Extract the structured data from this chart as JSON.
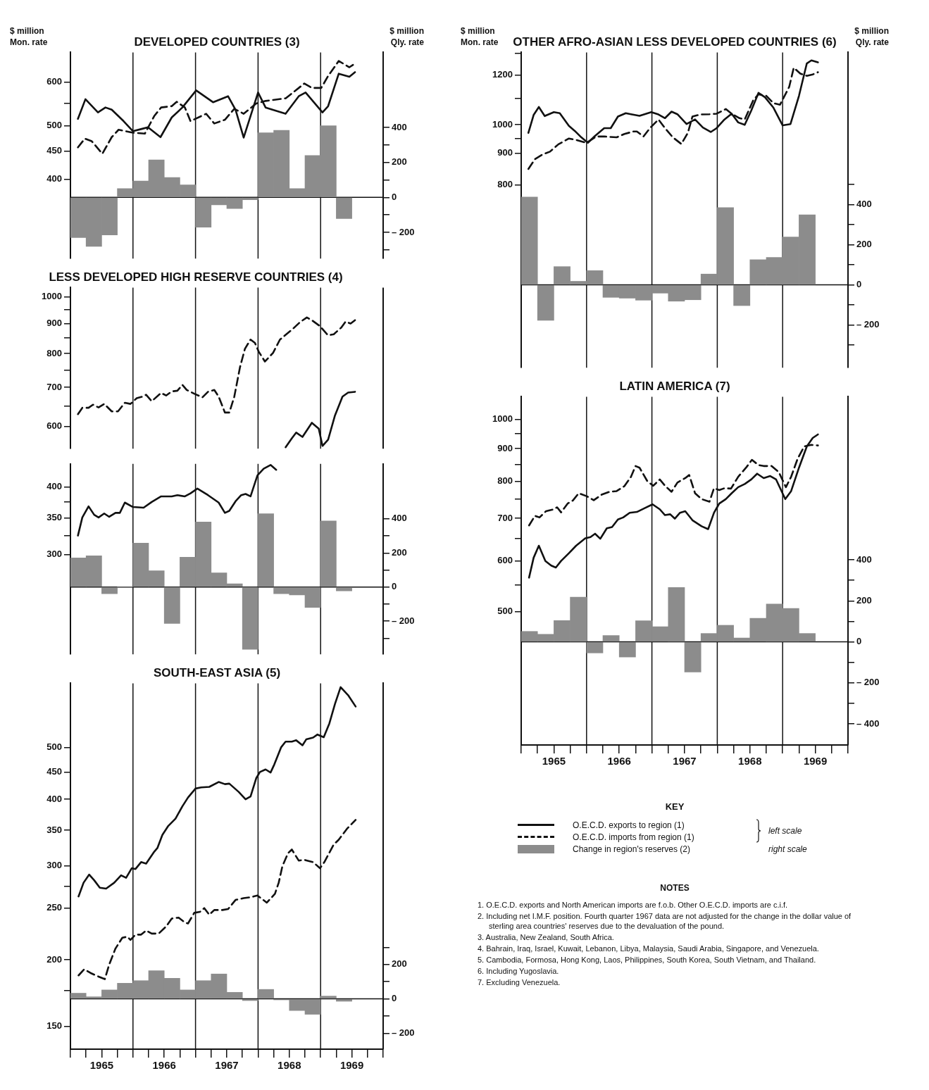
{
  "chart_data": [
    {
      "type": "line",
      "title": "DEVELOPED COUNTRIES (3)",
      "ylabel": "$ million Mon. rate",
      "y2label": "$ million Qly. rate",
      "log": "y",
      "tick_labels": "y",
      "xlim": [
        1965,
        1970
      ],
      "ylim": [
        287,
        680
      ],
      "y2lim": [
        -350,
        829
      ],
      "yticks": [
        400,
        450,
        500,
        {
          "value": 550,
          "label": null
        },
        600
      ],
      "y2ticks": [
        {
          "value": -300,
          "label": null
        },
        {
          "value": -200,
          "label": "– 200"
        },
        {
          "value": -100,
          "label": null
        },
        0,
        {
          "value": 100,
          "label": null
        },
        200,
        {
          "value": 300,
          "label": null
        },
        400
      ],
      "ref_lines": [
        {
          "axis": "x",
          "value": 1966
        },
        {
          "axis": "x",
          "value": 1967
        },
        {
          "axis": "x",
          "value": 1968
        },
        {
          "axis": "x",
          "value": 1969
        },
        {
          "axis": "y2",
          "value": 0
        }
      ],
      "series": [
        {
          "color": "#111111",
          "line_style": "solid",
          "x": [
            1965.12,
            1965.24,
            1965.44,
            1965.56,
            1965.66,
            1965.85,
            1966.0,
            1966.15,
            1966.24,
            1966.44,
            1966.62,
            1966.79,
            1967.01,
            1967.28,
            1967.52,
            1967.64,
            1967.77,
            1968.0,
            1968.12,
            1968.44,
            1968.65,
            1968.76,
            1969.03,
            1969.12,
            1969.29,
            1969.46,
            1969.55
          ],
          "values": [
            515,
            559,
            529,
            540,
            535,
            510,
            489,
            494,
            497,
            477,
            518,
            540,
            580,
            552,
            566,
            535,
            476,
            575,
            540,
            526,
            566,
            575,
            529,
            543,
            622,
            614,
            626
          ]
        },
        {
          "color": "#111111",
          "line_style": "dashed",
          "x": [
            1965.12,
            1965.23,
            1965.34,
            1965.51,
            1965.66,
            1965.77,
            1966.0,
            1966.19,
            1966.34,
            1966.45,
            1966.62,
            1966.7,
            1966.83,
            1966.92,
            1967.17,
            1967.3,
            1967.47,
            1967.62,
            1967.77,
            1967.97,
            1968.12,
            1968.44,
            1968.74,
            1968.86,
            1969.01,
            1969.12,
            1969.29,
            1969.46,
            1969.55
          ],
          "values": [
            457,
            474,
            469,
            445,
            477,
            492,
            486,
            484,
            521,
            540,
            543,
            553,
            540,
            510,
            526,
            505,
            513,
            537,
            526,
            549,
            555,
            561,
            597,
            586,
            586,
            616,
            656,
            639,
            649
          ]
        },
        {
          "type": "bar",
          "axis": "y2",
          "color": "#8c8c8c",
          "x": [
            1965.125,
            1965.375,
            1965.625,
            1965.875,
            1966.125,
            1966.375,
            1966.625,
            1966.875,
            1967.125,
            1967.375,
            1967.625,
            1967.875,
            1968.125,
            1968.375,
            1968.625,
            1968.875,
            1969.125,
            1969.375
          ],
          "values": [
            -230,
            -280,
            -215,
            50,
            93,
            214,
            114,
            71,
            -171,
            -43,
            -64,
            -14,
            369,
            383,
            50,
            239,
            410,
            -121
          ]
        }
      ]
    },
    {
      "type": "line",
      "title": "LESS DEVELOPED HIGH RESERVE COUNTRIES (4)",
      "log": "y",
      "tick_labels": "y",
      "xlim": [
        1965,
        1970
      ],
      "ylim": [
        550,
        1037
      ],
      "yticks": [
        600,
        {
          "value": 650,
          "label": null
        },
        700,
        {
          "value": 750,
          "label": null
        },
        800,
        {
          "value": 850,
          "label": null
        },
        900,
        {
          "value": 950,
          "label": null
        },
        1000
      ],
      "ref_lines": [
        {
          "axis": "x",
          "value": 1966
        },
        {
          "axis": "x",
          "value": 1967
        },
        {
          "axis": "x",
          "value": 1968
        },
        {
          "axis": "x",
          "value": 1969
        }
      ],
      "series": [
        {
          "color": "#111111",
          "line_style": "dashed",
          "x": [
            1965.12,
            1965.19,
            1965.29,
            1965.36,
            1965.45,
            1965.54,
            1965.66,
            1965.76,
            1965.87,
            1965.96,
            1966.06,
            1966.15,
            1966.21,
            1966.3,
            1966.45,
            1966.53,
            1966.62,
            1966.71,
            1966.79,
            1966.86,
            1966.98,
            1967.11,
            1967.2,
            1967.3,
            1967.37,
            1967.47,
            1967.54,
            1967.62,
            1967.71,
            1967.79,
            1967.88,
            1967.95,
            1968.01,
            1968.11,
            1968.24,
            1968.35,
            1968.56,
            1968.67,
            1968.78,
            1968.86,
            1968.99,
            1969.12,
            1969.21,
            1969.33,
            1969.4,
            1969.48,
            1969.55
          ],
          "values": [
            630,
            646,
            646,
            654,
            647,
            656,
            637,
            637,
            659,
            656,
            671,
            675,
            680,
            663,
            685,
            678,
            689,
            691,
            707,
            693,
            683,
            673,
            688,
            693,
            675,
            634,
            634,
            675,
            757,
            815,
            845,
            834,
            806,
            775,
            802,
            845,
            882,
            905,
            922,
            912,
            891,
            859,
            863,
            886,
            907,
            900,
            912
          ]
        },
        {
          "color": "#111111",
          "line_style": "solid",
          "x": [
            1968.44,
            1968.54,
            1968.61,
            1968.71,
            1968.86,
            1968.97,
            1969.03,
            1969.12,
            1969.23,
            1969.35,
            1969.44,
            1969.55
          ],
          "values": [
            553,
            573,
            586,
            576,
            609,
            595,
            556,
            570,
            627,
            675,
            686,
            688
          ]
        }
      ]
    },
    {
      "type": "line",
      "log": "y",
      "tick_labels": "y",
      "xlim": [
        1965,
        1970
      ],
      "ylim": [
        196,
        441
      ],
      "y2lim": [
        -394,
        722
      ],
      "yticks": [
        300,
        {
          "value": 325,
          "label": null
        },
        350,
        {
          "value": 375,
          "label": null
        },
        400
      ],
      "y2ticks": [
        {
          "value": -300,
          "label": null
        },
        {
          "value": -200,
          "label": "– 200"
        },
        {
          "value": -100,
          "label": null
        },
        0,
        {
          "value": 100,
          "label": null
        },
        200,
        {
          "value": 300,
          "label": null
        },
        400
      ],
      "ref_lines": [
        {
          "axis": "x",
          "value": 1966
        },
        {
          "axis": "x",
          "value": 1967
        },
        {
          "axis": "x",
          "value": 1968
        },
        {
          "axis": "x",
          "value": 1969
        },
        {
          "axis": "y2",
          "value": 0
        }
      ],
      "series": [
        {
          "color": "#111111",
          "line_style": "solid",
          "x": [
            1965.12,
            1965.19,
            1965.29,
            1965.38,
            1965.45,
            1965.54,
            1965.62,
            1965.72,
            1965.79,
            1965.87,
            1966.0,
            1966.17,
            1966.3,
            1966.45,
            1966.62,
            1966.71,
            1966.83,
            1966.92,
            1967.03,
            1967.2,
            1967.37,
            1967.47,
            1967.54,
            1967.64,
            1967.73,
            1967.8,
            1967.88,
            1967.99,
            1968.09,
            1968.2,
            1968.29
          ],
          "values": [
            325,
            351,
            368,
            355,
            351,
            357,
            352,
            358,
            358,
            374,
            367,
            366,
            375,
            384,
            384,
            386,
            384,
            389,
            397,
            386,
            374,
            358,
            361,
            376,
            386,
            388,
            384,
            420,
            432,
            439,
            430
          ]
        },
        {
          "type": "bar",
          "axis": "y2",
          "color": "#8c8c8c",
          "x": [
            1965.125,
            1965.375,
            1965.625,
            1965.875,
            1966.125,
            1966.375,
            1966.625,
            1966.875,
            1967.125,
            1967.375,
            1967.625,
            1967.875,
            1968.125,
            1968.375,
            1968.625,
            1968.875,
            1969.125,
            1969.375
          ],
          "values": [
            171,
            183,
            -39,
            0,
            258,
            96,
            -213,
            175,
            381,
            83,
            19,
            -365,
            430,
            -39,
            -46,
            -119,
            388,
            -22
          ]
        }
      ]
    },
    {
      "type": "line",
      "title": "SOUTH-EAST ASIA (5)",
      "log": "y",
      "xlim": [
        1965,
        1970
      ],
      "ylim": [
        136,
        660
      ],
      "y2lim": [
        -293,
        1838
      ],
      "xticks": [
        {
          "value": 1965,
          "label": null
        },
        {
          "value": 1965.25,
          "label": null
        },
        {
          "value": 1965.5,
          "label": "1965"
        },
        {
          "value": 1965.75,
          "label": null
        },
        {
          "value": 1966,
          "label": null
        },
        {
          "value": 1966.25,
          "label": null
        },
        {
          "value": 1966.5,
          "label": "1966"
        },
        {
          "value": 1966.75,
          "label": null
        },
        {
          "value": 1967,
          "label": null
        },
        {
          "value": 1967.25,
          "label": null
        },
        {
          "value": 1967.5,
          "label": "1967"
        },
        {
          "value": 1967.75,
          "label": null
        },
        {
          "value": 1968,
          "label": null
        },
        {
          "value": 1968.25,
          "label": null
        },
        {
          "value": 1968.5,
          "label": "1968"
        },
        {
          "value": 1968.75,
          "label": null
        },
        {
          "value": 1969,
          "label": null
        },
        {
          "value": 1969.25,
          "label": null
        },
        {
          "value": 1969.5,
          "label": "1969"
        },
        {
          "value": 1969.75,
          "label": null
        },
        {
          "value": 1970,
          "label": null
        }
      ],
      "yticks": [
        150,
        {
          "value": 175,
          "label": null
        },
        200,
        250,
        {
          "value": 275,
          "label": null
        },
        300,
        350,
        400,
        450,
        500
      ],
      "y2ticks": [
        {
          "value": -200,
          "label": "– 200"
        },
        {
          "value": -100,
          "label": null
        },
        0,
        {
          "value": 100,
          "label": null
        },
        200,
        {
          "value": 300,
          "label": null
        }
      ],
      "ref_lines": [
        {
          "axis": "x",
          "value": 1966
        },
        {
          "axis": "x",
          "value": 1967
        },
        {
          "axis": "x",
          "value": 1968
        },
        {
          "axis": "x",
          "value": 1969
        },
        {
          "axis": "y2",
          "value": 0
        }
      ],
      "series": [
        {
          "color": "#111111",
          "line_style": "solid",
          "x": [
            1965.13,
            1965.21,
            1965.3,
            1965.38,
            1965.47,
            1965.57,
            1965.7,
            1965.81,
            1965.89,
            1965.98,
            1966.04,
            1966.13,
            1966.21,
            1966.34,
            1966.39,
            1966.47,
            1966.56,
            1966.68,
            1966.79,
            1966.88,
            1967.0,
            1967.09,
            1967.22,
            1967.37,
            1967.47,
            1967.54,
            1967.69,
            1967.8,
            1967.88,
            1967.97,
            1968.03,
            1968.12,
            1968.2,
            1968.26,
            1968.37,
            1968.44,
            1968.54,
            1968.61,
            1968.71,
            1968.77,
            1968.88,
            1968.95,
            1969.05,
            1969.14,
            1969.23,
            1969.32,
            1969.44,
            1969.56
          ],
          "values": [
            263,
            279,
            289,
            282,
            273,
            272,
            279,
            288,
            285,
            297,
            296,
            305,
            303,
            319,
            324,
            343,
            356,
            368,
            388,
            403,
            419,
            421,
            422,
            431,
            427,
            428,
            413,
            400,
            405,
            438,
            450,
            455,
            449,
            465,
            501,
            513,
            513,
            516,
            505,
            518,
            522,
            529,
            523,
            555,
            604,
            649,
            627,
            597
          ]
        },
        {
          "color": "#111111",
          "line_style": "dashed",
          "x": [
            1965.13,
            1965.22,
            1965.32,
            1965.45,
            1965.55,
            1965.62,
            1965.72,
            1965.83,
            1965.91,
            1965.96,
            1966.04,
            1966.13,
            1966.21,
            1966.3,
            1966.41,
            1966.53,
            1966.62,
            1966.73,
            1966.83,
            1966.88,
            1966.98,
            1967.07,
            1967.14,
            1967.22,
            1967.3,
            1967.43,
            1967.52,
            1967.64,
            1967.77,
            1967.88,
            1967.99,
            1968.14,
            1968.27,
            1968.33,
            1968.39,
            1968.48,
            1968.54,
            1968.65,
            1968.74,
            1968.88,
            1968.99,
            1969.06,
            1969.21,
            1969.29,
            1969.42,
            1969.56
          ],
          "values": [
            187,
            192,
            189,
            186,
            184,
            196,
            210,
            220,
            221,
            218,
            223,
            223,
            227,
            224,
            224,
            231,
            239,
            240,
            235,
            234,
            245,
            246,
            250,
            243,
            248,
            248,
            249,
            259,
            261,
            262,
            264,
            256,
            266,
            279,
            300,
            317,
            322,
            307,
            308,
            305,
            297,
            305,
            329,
            336,
            352,
            366
          ]
        },
        {
          "type": "bar",
          "axis": "y2",
          "color": "#8c8c8c",
          "x": [
            1965.125,
            1965.375,
            1965.625,
            1965.875,
            1966.125,
            1966.375,
            1966.625,
            1966.875,
            1967.125,
            1967.375,
            1967.625,
            1967.875,
            1968.125,
            1968.375,
            1968.625,
            1968.875,
            1969.125,
            1969.375
          ],
          "values": [
            33,
            12,
            52,
            91,
            106,
            164,
            120,
            52,
            106,
            145,
            38,
            -10,
            55,
            -6,
            -68,
            -90,
            16,
            -14
          ]
        }
      ]
    },
    {
      "type": "line",
      "title": "OTHER AFRO-ASIAN LESS DEVELOPED COUNTRIES (6)",
      "ylabel": "$ million Mon. rate",
      "y2label": "$ million Qly. rate",
      "log": "y",
      "tick_labels": "y",
      "xlim": [
        1965,
        1970
      ],
      "ylim": [
        408,
        1305
      ],
      "y2lim": [
        -412,
        1157
      ],
      "yticks": [
        800,
        900,
        {
          "value": 950,
          "label": null
        },
        1000,
        {
          "value": 1100,
          "label": null
        },
        1200,
        {
          "value": 1300,
          "label": null
        }
      ],
      "y2ticks": [
        {
          "value": -300,
          "label": null
        },
        {
          "value": -200,
          "label": "– 200"
        },
        {
          "value": -100,
          "label": null
        },
        0,
        {
          "value": 100,
          "label": null
        },
        200,
        {
          "value": 300,
          "label": null
        },
        400,
        {
          "value": 500,
          "label": null
        }
      ],
      "ref_lines": [
        {
          "axis": "x",
          "value": 1966
        },
        {
          "axis": "x",
          "value": 1967
        },
        {
          "axis": "x",
          "value": 1968
        },
        {
          "axis": "x",
          "value": 1969
        },
        {
          "axis": "y2",
          "value": 0
        }
      ],
      "series": [
        {
          "color": "#111111",
          "line_style": "solid",
          "x": [
            1965.11,
            1965.19,
            1965.27,
            1965.36,
            1965.5,
            1965.59,
            1965.73,
            1965.82,
            1965.92,
            1966.02,
            1966.13,
            1966.27,
            1966.37,
            1966.48,
            1966.6,
            1966.68,
            1966.81,
            1966.99,
            1967.1,
            1967.2,
            1967.3,
            1967.39,
            1967.53,
            1967.66,
            1967.78,
            1967.9,
            1967.99,
            1968.11,
            1968.22,
            1968.32,
            1968.42,
            1968.52,
            1968.63,
            1968.73,
            1968.86,
            1969.0,
            1969.12,
            1969.25,
            1969.37,
            1969.44,
            1969.54
          ],
          "values": [
            970,
            1036,
            1067,
            1032,
            1047,
            1043,
            995,
            977,
            954,
            935,
            959,
            987,
            987,
            1030,
            1043,
            1039,
            1033,
            1047,
            1038,
            1024,
            1049,
            1039,
            1002,
            1019,
            989,
            973,
            987,
            1019,
            1041,
            1008,
            999,
            1053,
            1124,
            1106,
            1064,
            997,
            1002,
            1112,
            1253,
            1267,
            1258
          ]
        },
        {
          "color": "#111111",
          "line_style": "dashed",
          "x": [
            1965.11,
            1965.21,
            1965.32,
            1965.44,
            1965.57,
            1965.73,
            1965.84,
            1966.0,
            1966.15,
            1966.27,
            1966.46,
            1966.58,
            1966.72,
            1966.77,
            1966.87,
            1966.97,
            1967.1,
            1967.2,
            1967.32,
            1967.45,
            1967.55,
            1967.62,
            1967.74,
            1967.88,
            1967.99,
            1968.13,
            1968.22,
            1968.34,
            1968.42,
            1968.55,
            1968.63,
            1968.75,
            1968.86,
            1968.96,
            1969.1,
            1969.17,
            1969.27,
            1969.37,
            1969.46,
            1969.54
          ],
          "values": [
            849,
            880,
            895,
            905,
            930,
            950,
            945,
            935,
            957,
            957,
            954,
            966,
            975,
            975,
            957,
            987,
            1019,
            987,
            954,
            931,
            970,
            1030,
            1038,
            1039,
            1041,
            1059,
            1041,
            1024,
            1019,
            1094,
            1118,
            1112,
            1082,
            1076,
            1149,
            1233,
            1207,
            1197,
            1203,
            1213
          ]
        },
        {
          "type": "bar",
          "axis": "y2",
          "color": "#8c8c8c",
          "x": [
            1965.125,
            1965.375,
            1965.625,
            1965.875,
            1966.125,
            1966.375,
            1966.625,
            1966.875,
            1967.125,
            1967.375,
            1967.625,
            1967.875,
            1968.125,
            1968.375,
            1968.625,
            1968.875,
            1969.125,
            1969.375
          ],
          "values": [
            437,
            -176,
            91,
            18,
            71,
            -62,
            -66,
            -76,
            -41,
            -81,
            -74,
            54,
            385,
            -103,
            125,
            137,
            238,
            349
          ]
        }
      ]
    },
    {
      "type": "line",
      "title": "LATIN AMERICA (7)",
      "log": "y",
      "legend": "bottom",
      "legend_title": "KEY",
      "xlim": [
        1965,
        1970
      ],
      "ylim": [
        309,
        1085
      ],
      "y2lim": [
        -503,
        1196
      ],
      "xticks": [
        {
          "value": 1965,
          "label": null
        },
        {
          "value": 1965.25,
          "label": null
        },
        {
          "value": 1965.5,
          "label": "1965"
        },
        {
          "value": 1965.75,
          "label": null
        },
        {
          "value": 1966,
          "label": null
        },
        {
          "value": 1966.25,
          "label": null
        },
        {
          "value": 1966.5,
          "label": "1966"
        },
        {
          "value": 1966.75,
          "label": null
        },
        {
          "value": 1967,
          "label": null
        },
        {
          "value": 1967.25,
          "label": null
        },
        {
          "value": 1967.5,
          "label": "1967"
        },
        {
          "value": 1967.75,
          "label": null
        },
        {
          "value": 1968,
          "label": null
        },
        {
          "value": 1968.25,
          "label": null
        },
        {
          "value": 1968.5,
          "label": "1968"
        },
        {
          "value": 1968.75,
          "label": null
        },
        {
          "value": 1969,
          "label": null
        },
        {
          "value": 1969.25,
          "label": null
        },
        {
          "value": 1969.5,
          "label": "1969"
        },
        {
          "value": 1969.75,
          "label": null
        },
        {
          "value": 1970,
          "label": null
        }
      ],
      "yticks": [
        500,
        {
          "value": 550,
          "label": null
        },
        600,
        {
          "value": 650,
          "label": null
        },
        700,
        {
          "value": 750,
          "label": null
        },
        800,
        {
          "value": 850,
          "label": null
        },
        900,
        {
          "value": 950,
          "label": null
        },
        1000
      ],
      "y2ticks": [
        {
          "value": -400,
          "label": "– 400"
        },
        {
          "value": -300,
          "label": null
        },
        {
          "value": -200,
          "label": "– 200"
        },
        {
          "value": -100,
          "label": null
        },
        0,
        {
          "value": 100,
          "label": null
        },
        200,
        {
          "value": 300,
          "label": null
        },
        400
      ],
      "ref_lines": [
        {
          "axis": "x",
          "value": 1966
        },
        {
          "axis": "x",
          "value": 1967
        },
        {
          "axis": "x",
          "value": 1968
        },
        {
          "axis": "x",
          "value": 1969
        },
        {
          "axis": "y2",
          "value": 0
        }
      ],
      "series": [
        {
          "name": "O.E.C.D. exports to region (1)",
          "color": "#111111",
          "line_style": "solid",
          "x": [
            1965.12,
            1965.19,
            1965.27,
            1965.37,
            1965.46,
            1965.53,
            1965.61,
            1965.73,
            1965.84,
            1965.98,
            1966.06,
            1966.13,
            1966.21,
            1966.31,
            1966.39,
            1966.48,
            1966.56,
            1966.66,
            1966.77,
            1966.89,
            1967.01,
            1967.12,
            1967.2,
            1967.28,
            1967.35,
            1967.43,
            1967.51,
            1967.62,
            1967.76,
            1967.86,
            1967.95,
            1968.03,
            1968.13,
            1968.22,
            1968.32,
            1968.42,
            1968.52,
            1968.61,
            1968.71,
            1968.81,
            1968.9,
            1969.04,
            1969.13,
            1969.25,
            1969.37,
            1969.46,
            1969.54
          ],
          "values": [
            565,
            607,
            634,
            600,
            590,
            586,
            600,
            617,
            634,
            651,
            654,
            662,
            650,
            675,
            678,
            697,
            702,
            714,
            716,
            726,
            736,
            723,
            708,
            710,
            699,
            714,
            718,
            695,
            680,
            673,
            714,
            738,
            750,
            766,
            783,
            792,
            805,
            822,
            809,
            815,
            805,
            750,
            772,
            840,
            907,
            935,
            947
          ]
        },
        {
          "name": "O.E.C.D. imports from region (1)",
          "color": "#111111",
          "line_style": "dashed",
          "x": [
            1965.12,
            1965.21,
            1965.28,
            1965.38,
            1965.48,
            1965.55,
            1965.61,
            1965.71,
            1965.79,
            1965.88,
            1966.0,
            1966.11,
            1966.23,
            1966.35,
            1966.46,
            1966.58,
            1966.68,
            1966.75,
            1966.81,
            1966.93,
            1967.02,
            1967.12,
            1967.2,
            1967.3,
            1967.39,
            1967.51,
            1967.57,
            1967.66,
            1967.76,
            1967.88,
            1967.95,
            1968.03,
            1968.11,
            1968.21,
            1968.32,
            1968.44,
            1968.53,
            1968.63,
            1968.71,
            1968.83,
            1968.94,
            1969.05,
            1969.13,
            1969.23,
            1969.33,
            1969.44,
            1969.54
          ],
          "values": [
            682,
            706,
            702,
            718,
            722,
            728,
            715,
            738,
            746,
            766,
            758,
            747,
            762,
            770,
            772,
            786,
            813,
            845,
            840,
            800,
            787,
            805,
            787,
            770,
            796,
            809,
            818,
            766,
            750,
            743,
            780,
            775,
            780,
            779,
            813,
            840,
            864,
            848,
            845,
            845,
            827,
            783,
            813,
            868,
            907,
            912,
            910
          ]
        },
        {
          "type": "bar",
          "name": "Change in region's reserves (2)",
          "axis": "y2",
          "color": "#8c8c8c",
          "x": [
            1965.125,
            1965.375,
            1965.625,
            1965.875,
            1966.125,
            1966.375,
            1966.625,
            1966.875,
            1967.125,
            1967.375,
            1967.625,
            1967.875,
            1968.125,
            1968.375,
            1968.625,
            1968.875,
            1969.125,
            1969.375
          ],
          "values": [
            51,
            37,
            104,
            218,
            -54,
            31,
            -74,
            103,
            74,
            265,
            -147,
            41,
            81,
            19,
            115,
            185,
            163,
            41
          ]
        }
      ],
      "annotations": [
        "left scale",
        "right scale",
        "NOTES",
        "1. O.E.C.D. exports and North American imports are f.o.b. Other O.E.C.D. imports are c.i.f.",
        "2. Including net I.M.F. position. Fourth quarter 1967 data are not adjusted for the change in the dollar value of sterling area countries' reserves due to the devaluation of the pound.",
        "3. Australia, New Zealand, South Africa.",
        "4. Bahrain, Iraq, Israel, Kuwait, Lebanon, Libya, Malaysia, Saudi Arabia, Singapore, and Venezuela.",
        "5. Cambodia, Formosa, Hong Kong, Laos, Philippines, South Korea, South Vietnam, and Thailand.",
        "6. Including Yugoslavia.",
        "7. Excluding Venezuela."
      ]
    }
  ]
}
